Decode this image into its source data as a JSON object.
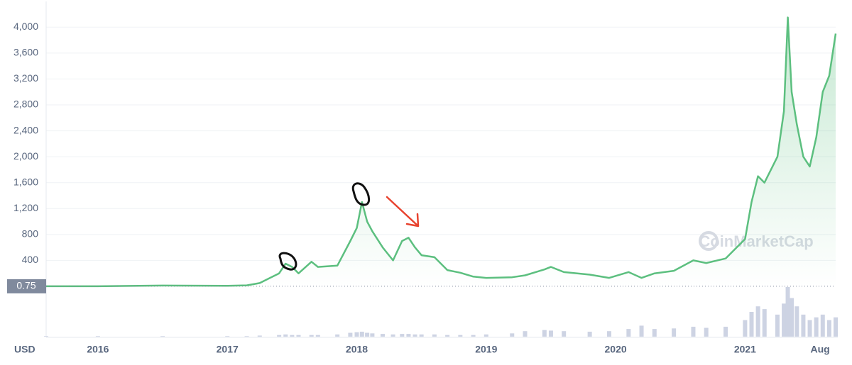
{
  "chart_data": {
    "type": "line",
    "currency_label": "USD",
    "watermark": "CoinMarketCap",
    "current_price": 0.75,
    "color": "#5cbf7f",
    "volume_color": "#cdd3e3",
    "x": [
      2015.6,
      2016.0,
      2016.5,
      2017.0,
      2017.15,
      2017.25,
      2017.4,
      2017.45,
      2017.5,
      2017.55,
      2017.65,
      2017.7,
      2017.85,
      2017.95,
      2018.0,
      2018.04,
      2018.08,
      2018.12,
      2018.2,
      2018.28,
      2018.35,
      2018.4,
      2018.45,
      2018.5,
      2018.6,
      2018.7,
      2018.8,
      2018.9,
      2019.0,
      2019.2,
      2019.3,
      2019.45,
      2019.5,
      2019.6,
      2019.8,
      2019.95,
      2020.1,
      2020.2,
      2020.3,
      2020.45,
      2020.6,
      2020.7,
      2020.85,
      2021.0,
      2021.05,
      2021.1,
      2021.15,
      2021.25,
      2021.3,
      2021.33,
      2021.36,
      2021.4,
      2021.45,
      2021.5,
      2021.55,
      2021.6,
      2021.65,
      2021.7
    ],
    "series": [
      {
        "name": "Price",
        "values": [
          1,
          1,
          12,
          8,
          15,
          50,
          200,
          350,
          300,
          200,
          380,
          300,
          320,
          700,
          900,
          1300,
          1000,
          850,
          600,
          400,
          700,
          750,
          600,
          480,
          450,
          250,
          210,
          150,
          130,
          140,
          170,
          260,
          300,
          220,
          180,
          130,
          220,
          130,
          200,
          240,
          400,
          360,
          430,
          730,
          1300,
          1700,
          1600,
          2000,
          2700,
          4150,
          3000,
          2500,
          2000,
          1850,
          2300,
          3000,
          3250,
          3900
        ]
      },
      {
        "name": "Volume",
        "values": [
          1,
          1,
          1,
          1,
          1,
          2,
          3,
          4,
          3,
          3,
          3,
          3,
          4,
          7,
          8,
          9,
          7,
          6,
          5,
          4,
          5,
          5,
          4,
          4,
          4,
          3,
          3,
          3,
          4,
          6,
          10,
          12,
          11,
          10,
          9,
          10,
          14,
          20,
          14,
          15,
          18,
          16,
          18,
          30,
          45,
          55,
          50,
          40,
          60,
          90,
          70,
          55,
          40,
          30,
          35,
          40,
          30,
          35
        ]
      }
    ],
    "xlim": [
      2015.6,
      2021.7
    ],
    "xticks": [
      2016,
      2017,
      2018,
      2019,
      2020,
      2021,
      {
        "value": 2021.58,
        "label": "Aug"
      }
    ],
    "ylim": [
      0,
      4200
    ],
    "yticks": [
      {
        "value": 400,
        "label": "400"
      },
      {
        "value": 800,
        "label": "800"
      },
      {
        "value": 1200,
        "label": "1,200"
      },
      {
        "value": 1600,
        "label": "1,600"
      },
      {
        "value": 2000,
        "label": "2,000"
      },
      {
        "value": 2400,
        "label": "2,400"
      },
      {
        "value": 2800,
        "label": "2,800"
      },
      {
        "value": 3200,
        "label": "3,200"
      },
      {
        "value": 3600,
        "label": "3,600"
      },
      {
        "value": 4000,
        "label": "4,000"
      }
    ],
    "grid": true
  }
}
